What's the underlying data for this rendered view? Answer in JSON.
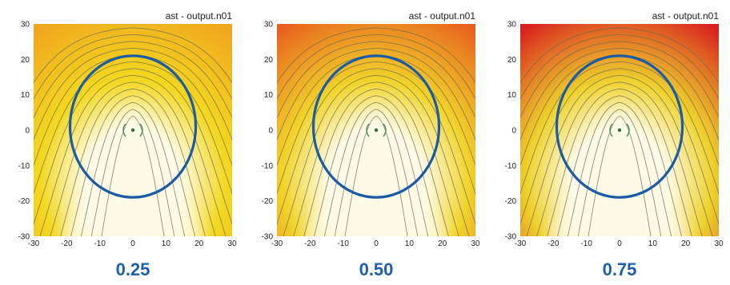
{
  "chart_data": [
    {
      "type": "heatmap",
      "title": "ast - output.n01",
      "caption": "0.25",
      "xlim": [
        -30,
        30
      ],
      "ylim": [
        -30,
        30
      ],
      "xticks": [
        -30,
        -20,
        -10,
        0,
        10,
        20,
        30
      ],
      "yticks": [
        30,
        20,
        10,
        0,
        -10,
        -20,
        -30
      ],
      "outer_color": "#f0a51e",
      "mid_color": "#f3d820",
      "core_color": "#fffbe8",
      "ellipse": {
        "cx": 0,
        "cy": 1,
        "rx": 19,
        "ry": 20,
        "color": "#1a5ba6"
      },
      "grid": false
    },
    {
      "type": "heatmap",
      "title": "ast - output.n01",
      "caption": "0.50",
      "xlim": [
        -30,
        30
      ],
      "ylim": [
        -30,
        30
      ],
      "xticks": [
        -30,
        -20,
        -10,
        0,
        10,
        20,
        30
      ],
      "yticks": [
        30,
        20,
        10,
        0,
        -10,
        -20,
        -30
      ],
      "outer_color": "#e8601e",
      "mid_color": "#f1d42a",
      "core_color": "#fffbe8",
      "ellipse": {
        "cx": 0,
        "cy": 1,
        "rx": 19,
        "ry": 20,
        "color": "#1a5ba6"
      },
      "grid": false
    },
    {
      "type": "heatmap",
      "title": "ast - output.n01",
      "caption": "0.75",
      "xlim": [
        -30,
        30
      ],
      "ylim": [
        -30,
        30
      ],
      "xticks": [
        -30,
        -20,
        -10,
        0,
        10,
        20,
        30
      ],
      "yticks": [
        30,
        20,
        10,
        0,
        -10,
        -20,
        -30
      ],
      "outer_color": "#d8201f",
      "mid_color": "#eed22c",
      "core_color": "#fffbe8",
      "ellipse": {
        "cx": 0,
        "cy": 1,
        "rx": 19,
        "ry": 20,
        "color": "#1a5ba6"
      },
      "grid": false
    }
  ]
}
